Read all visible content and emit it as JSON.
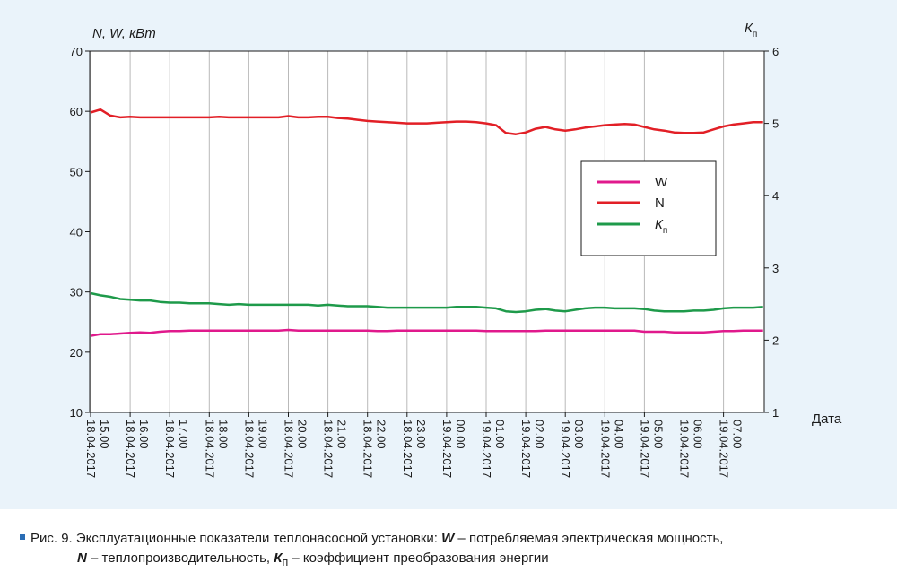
{
  "chart_data": {
    "type": "line",
    "left_axis_title": "N, W, кВт",
    "right_axis_title": "Kп",
    "xlabel": "Дата",
    "ylim_left": [
      10,
      70
    ],
    "yticks_left": [
      10,
      20,
      30,
      40,
      50,
      60,
      70
    ],
    "ylim_right": [
      1,
      6
    ],
    "yticks_right": [
      1,
      2,
      3,
      4,
      5,
      6
    ],
    "grid": "vertical",
    "legend_position": "right-middle",
    "x_categories": [
      [
        "18.04.2017",
        "15.00"
      ],
      [
        "18.04.2017",
        "16.00"
      ],
      [
        "18.04.2017",
        "17.00"
      ],
      [
        "18.04.2017",
        "18.00"
      ],
      [
        "18.04.2017",
        "19.00"
      ],
      [
        "18.04.2017",
        "20.00"
      ],
      [
        "18.04.2017",
        "21.00"
      ],
      [
        "18.04.2017",
        "22.00"
      ],
      [
        "18.04.2017",
        "23.00"
      ],
      [
        "19.04.2017",
        "00.00"
      ],
      [
        "19.04.2017",
        "01.00"
      ],
      [
        "19.04.2017",
        "02.00"
      ],
      [
        "19.04.2017",
        "03.00"
      ],
      [
        "19.04.2017",
        "04.00"
      ],
      [
        "19.04.2017",
        "05.00"
      ],
      [
        "19.04.2017",
        "06.00"
      ],
      [
        "19.04.2017",
        "07.00"
      ]
    ],
    "x_hours": [
      0,
      0.25,
      0.5,
      0.75,
      1,
      1.25,
      1.5,
      1.75,
      2,
      2.25,
      2.5,
      2.75,
      3,
      3.25,
      3.5,
      3.75,
      4,
      4.25,
      4.5,
      4.75,
      5,
      5.25,
      5.5,
      5.75,
      6,
      6.25,
      6.5,
      6.75,
      7,
      7.25,
      7.5,
      7.75,
      8,
      8.25,
      8.5,
      8.75,
      9,
      9.25,
      9.5,
      9.75,
      10,
      10.25,
      10.5,
      10.75,
      11,
      11.25,
      11.5,
      11.75,
      12,
      12.25,
      12.5,
      12.75,
      13,
      13.25,
      13.5,
      13.75,
      14,
      14.25,
      14.5,
      14.75,
      15,
      15.25,
      15.5,
      15.75,
      16,
      16.25,
      16.5,
      16.75,
      17
    ],
    "series": [
      {
        "name": "W",
        "axis": "left",
        "color": "#e0198c",
        "values": [
          22.7,
          23.0,
          23.0,
          23.1,
          23.2,
          23.3,
          23.2,
          23.4,
          23.5,
          23.5,
          23.6,
          23.6,
          23.6,
          23.6,
          23.6,
          23.6,
          23.6,
          23.6,
          23.6,
          23.6,
          23.7,
          23.6,
          23.6,
          23.6,
          23.6,
          23.6,
          23.6,
          23.6,
          23.6,
          23.5,
          23.5,
          23.6,
          23.6,
          23.6,
          23.6,
          23.6,
          23.6,
          23.6,
          23.6,
          23.6,
          23.5,
          23.5,
          23.5,
          23.5,
          23.5,
          23.5,
          23.6,
          23.6,
          23.6,
          23.6,
          23.6,
          23.6,
          23.6,
          23.6,
          23.6,
          23.6,
          23.4,
          23.4,
          23.4,
          23.3,
          23.3,
          23.3,
          23.3,
          23.4,
          23.5,
          23.5,
          23.6,
          23.6,
          23.6
        ]
      },
      {
        "name": "N",
        "axis": "left",
        "color": "#e21f26",
        "values": [
          59.8,
          60.3,
          59.3,
          59.0,
          59.1,
          59.0,
          59.0,
          59.0,
          59.0,
          59.0,
          59.0,
          59.0,
          59.0,
          59.1,
          59.0,
          59.0,
          59.0,
          59.0,
          59.0,
          59.0,
          59.2,
          59.0,
          59.0,
          59.1,
          59.1,
          58.9,
          58.8,
          58.6,
          58.4,
          58.3,
          58.2,
          58.1,
          58.0,
          58.0,
          58.0,
          58.1,
          58.2,
          58.3,
          58.3,
          58.2,
          58.0,
          57.7,
          56.4,
          56.2,
          56.5,
          57.1,
          57.4,
          57.0,
          56.8,
          57.0,
          57.3,
          57.5,
          57.7,
          57.8,
          57.9,
          57.8,
          57.4,
          57.0,
          56.8,
          56.5,
          56.4,
          56.4,
          56.5,
          57.0,
          57.5,
          57.8,
          58.0,
          58.2,
          58.2
        ]
      },
      {
        "name": "Kп",
        "axis": "right",
        "color": "#1e9a4a",
        "values": [
          2.65,
          2.62,
          2.6,
          2.57,
          2.56,
          2.55,
          2.55,
          2.53,
          2.52,
          2.52,
          2.51,
          2.51,
          2.51,
          2.5,
          2.49,
          2.5,
          2.49,
          2.49,
          2.49,
          2.49,
          2.49,
          2.49,
          2.49,
          2.48,
          2.49,
          2.48,
          2.47,
          2.47,
          2.47,
          2.46,
          2.45,
          2.45,
          2.45,
          2.45,
          2.45,
          2.45,
          2.45,
          2.46,
          2.46,
          2.46,
          2.45,
          2.44,
          2.4,
          2.39,
          2.4,
          2.42,
          2.43,
          2.41,
          2.4,
          2.42,
          2.44,
          2.45,
          2.45,
          2.44,
          2.44,
          2.44,
          2.43,
          2.41,
          2.4,
          2.4,
          2.4,
          2.41,
          2.41,
          2.42,
          2.44,
          2.45,
          2.45,
          2.45,
          2.46
        ]
      }
    ]
  },
  "legend": {
    "items": [
      {
        "label": "W",
        "color": "#e0198c"
      },
      {
        "label": "N",
        "color": "#e21f26"
      },
      {
        "label": "К",
        "sub": "п",
        "color": "#1e9a4a"
      }
    ]
  },
  "axes_text": {
    "left_title": "N, W, кВт",
    "right_title_main": "К",
    "right_title_sub": "п",
    "x_title": "Дата"
  },
  "caption": {
    "prefix": "Рис. 9. Эксплуатационные показатели теплонасосной установки: ",
    "w_symbol": "W",
    "w_text": " – потребляемая электрическая мощность,",
    "n_symbol": "N",
    "n_text": " – теплопроизводительность, ",
    "k_symbol": "К",
    "k_sub": "п",
    "k_text": " – коэффициент преобразования энергии"
  },
  "colors": {
    "panel_bg": "#eaf3fa",
    "plot_bg": "#ffffff",
    "grid": "#b9b9b9",
    "accent": "#2a6db5"
  }
}
